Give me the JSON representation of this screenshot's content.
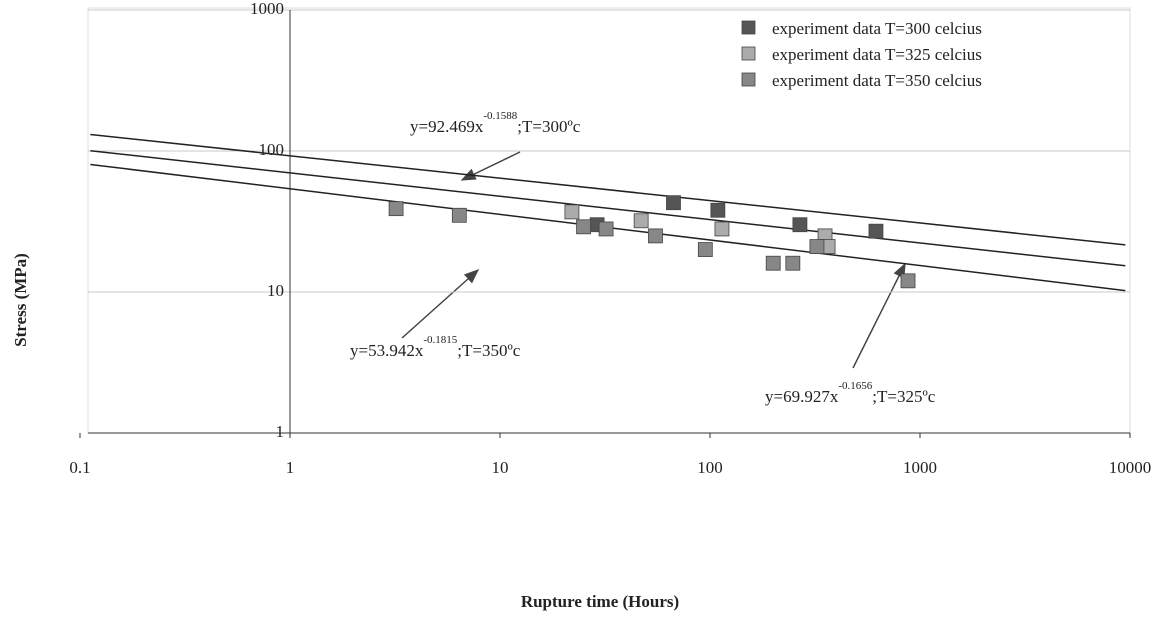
{
  "chart_data": {
    "type": "scatter",
    "x_label": "Rupture time (Hours)",
    "y_label": "Stress (MPa)",
    "x_log": true,
    "y_log": true,
    "xlim": [
      0.1,
      10000
    ],
    "ylim": [
      1,
      1000
    ],
    "xticks": [
      0.1,
      1,
      10,
      100,
      1000,
      10000
    ],
    "yticks": [
      1,
      10,
      100,
      1000
    ],
    "grid": true,
    "legend": "upper right",
    "series": [
      {
        "name": "experiment data T=300 celcius",
        "color": "#555555",
        "x": [
          29,
          67,
          109,
          268,
          617
        ],
        "values": [
          30,
          43,
          38,
          30,
          27
        ],
        "fit_coefficient": 92.469,
        "fit_exponent": -0.1588,
        "annotation": {
          "prefix": "y=92.469x",
          "exponent": "-0.1588",
          "suffix": ";T=300ºc"
        }
      },
      {
        "name": "experiment data T=325 celcius",
        "color": "#ababab",
        "x": [
          22,
          47,
          114,
          353,
          365
        ],
        "values": [
          37,
          32,
          28,
          25,
          21
        ],
        "fit_coefficient": 69.927,
        "fit_exponent": -0.1656,
        "annotation": {
          "prefix": "y=69.927x",
          "exponent": "-0.1656",
          "suffix": ";T=325ºc"
        }
      },
      {
        "name": "experiment data T=350 celcius",
        "color": "#878787",
        "x": [
          3.2,
          6.4,
          25,
          32,
          55,
          95,
          200,
          248,
          323,
          877
        ],
        "values": [
          39,
          35,
          29,
          28,
          25,
          20,
          16,
          16,
          21,
          12
        ],
        "fit_coefficient": 53.942,
        "fit_exponent": -0.1815,
        "annotation": {
          "prefix": "y=53.942x",
          "exponent": "-0.1815",
          "suffix": ";T=350ºc"
        }
      }
    ]
  }
}
